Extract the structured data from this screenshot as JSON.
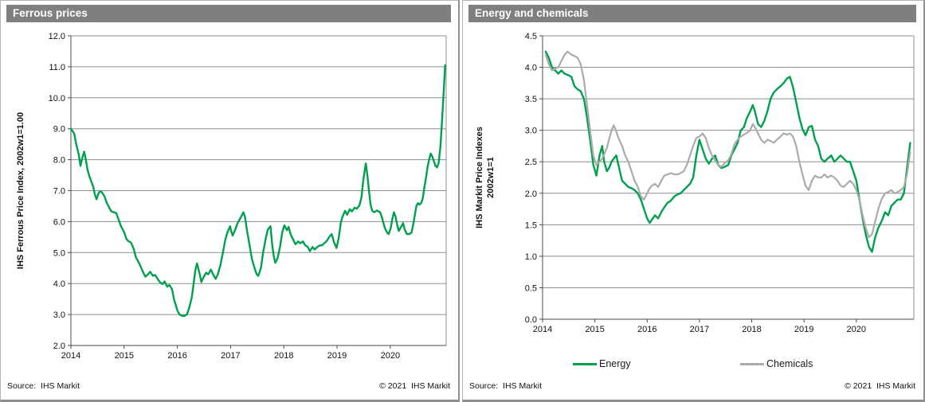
{
  "figure": {
    "background": "#ffffff",
    "header_bg": "#7f7f7f",
    "header_text_color": "#ffffff",
    "grid_color": "#8d8d8d",
    "axis_color": "#4a4a4a"
  },
  "chart_data": [
    {
      "type": "line",
      "title": "Ferrous prices",
      "xlabel": "",
      "ylabel_lines": [
        "IHS Ferrous Price Index, 2002w1=1.00"
      ],
      "xlim": [
        2014,
        2021.05
      ],
      "ylim": [
        2,
        12
      ],
      "ytick_step": 1,
      "ytick_decimals": 1,
      "xticks": [
        2014,
        2015,
        2016,
        2017,
        2018,
        2019,
        2020
      ],
      "grid": "horizontal",
      "legend_position": "none",
      "source": "Source:  IHS Markit",
      "copyright": "© 2021  IHS Markit",
      "series": [
        {
          "name": "Ferrous price index",
          "color": "#00A04E",
          "width": 2.4,
          "x": [
            2014.0,
            2014.06,
            2014.1,
            2014.15,
            2014.18,
            2014.22,
            2014.25,
            2014.28,
            2014.31,
            2014.34,
            2014.37,
            2014.42,
            2014.45,
            2014.48,
            2014.51,
            2014.54,
            2014.58,
            2014.63,
            2014.67,
            2014.72,
            2014.76,
            2014.81,
            2014.85,
            2014.9,
            2014.94,
            2015.0,
            2015.04,
            2015.07,
            2015.13,
            2015.18,
            2015.22,
            2015.27,
            2015.31,
            2015.36,
            2015.4,
            2015.45,
            2015.49,
            2015.54,
            2015.58,
            2015.63,
            2015.67,
            2015.72,
            2015.76,
            2015.81,
            2015.85,
            2015.9,
            2015.94,
            2015.97,
            2016.0,
            2016.04,
            2016.09,
            2016.13,
            2016.18,
            2016.22,
            2016.27,
            2016.31,
            2016.34,
            2016.37,
            2016.42,
            2016.45,
            2016.49,
            2016.54,
            2016.58,
            2016.63,
            2016.67,
            2016.72,
            2016.76,
            2016.81,
            2016.85,
            2016.9,
            2016.94,
            2016.99,
            2017.01,
            2017.04,
            2017.09,
            2017.13,
            2017.18,
            2017.24,
            2017.27,
            2017.31,
            2017.36,
            2017.4,
            2017.45,
            2017.49,
            2017.52,
            2017.57,
            2017.61,
            2017.66,
            2017.7,
            2017.75,
            2017.78,
            2017.81,
            2017.84,
            2017.88,
            2017.93,
            2017.97,
            2018.01,
            2018.06,
            2018.09,
            2018.13,
            2018.18,
            2018.22,
            2018.27,
            2018.31,
            2018.36,
            2018.4,
            2018.45,
            2018.49,
            2018.54,
            2018.58,
            2018.63,
            2018.67,
            2018.72,
            2018.76,
            2018.81,
            2018.85,
            2018.9,
            2018.94,
            2018.99,
            2019.03,
            2019.07,
            2019.1,
            2019.15,
            2019.19,
            2019.24,
            2019.28,
            2019.33,
            2019.37,
            2019.42,
            2019.46,
            2019.49,
            2019.54,
            2019.57,
            2019.6,
            2019.63,
            2019.66,
            2019.7,
            2019.75,
            2019.81,
            2019.85,
            2019.88,
            2019.91,
            2019.94,
            2019.97,
            2020.01,
            2020.04,
            2020.07,
            2020.1,
            2020.13,
            2020.16,
            2020.21,
            2020.24,
            2020.27,
            2020.31,
            2020.36,
            2020.4,
            2020.43,
            2020.46,
            2020.49,
            2020.52,
            2020.55,
            2020.58,
            2020.61,
            2020.64,
            2020.67,
            2020.7,
            2020.73,
            2020.76,
            2020.79,
            2020.82,
            2020.85,
            2020.88,
            2020.91,
            2020.94,
            2020.97,
            2021.0,
            2021.03
          ],
          "y": [
            9.0,
            8.85,
            8.5,
            8.15,
            7.8,
            8.1,
            8.26,
            8.0,
            7.7,
            7.5,
            7.36,
            7.12,
            6.87,
            6.72,
            6.88,
            6.98,
            6.95,
            6.82,
            6.62,
            6.45,
            6.33,
            6.3,
            6.28,
            6.05,
            5.85,
            5.66,
            5.45,
            5.38,
            5.32,
            5.12,
            4.85,
            4.7,
            4.55,
            4.35,
            4.22,
            4.3,
            4.38,
            4.25,
            4.28,
            4.15,
            4.05,
            3.98,
            4.07,
            3.9,
            3.95,
            3.82,
            3.47,
            3.31,
            3.13,
            3.0,
            2.96,
            2.95,
            3.0,
            3.2,
            3.55,
            4.05,
            4.45,
            4.65,
            4.3,
            4.05,
            4.2,
            4.35,
            4.3,
            4.45,
            4.3,
            4.15,
            4.3,
            4.6,
            4.95,
            5.4,
            5.65,
            5.85,
            5.7,
            5.55,
            5.75,
            5.95,
            6.1,
            6.3,
            6.15,
            5.7,
            5.2,
            4.8,
            4.5,
            4.3,
            4.25,
            4.5,
            5.0,
            5.45,
            5.75,
            5.85,
            5.3,
            4.9,
            4.67,
            4.8,
            5.2,
            5.65,
            5.88,
            5.72,
            5.83,
            5.58,
            5.4,
            5.27,
            5.36,
            5.3,
            5.36,
            5.24,
            5.18,
            5.05,
            5.18,
            5.1,
            5.18,
            5.23,
            5.24,
            5.3,
            5.38,
            5.5,
            5.6,
            5.35,
            5.15,
            5.45,
            5.95,
            6.15,
            6.35,
            6.22,
            6.4,
            6.33,
            6.45,
            6.42,
            6.52,
            6.8,
            7.3,
            7.88,
            7.5,
            7.0,
            6.55,
            6.35,
            6.3,
            6.36,
            6.3,
            6.1,
            5.9,
            5.75,
            5.65,
            5.6,
            5.8,
            6.1,
            6.3,
            6.15,
            5.9,
            5.7,
            5.85,
            5.95,
            5.75,
            5.6,
            5.6,
            5.65,
            5.9,
            6.2,
            6.5,
            6.6,
            6.55,
            6.6,
            6.75,
            7.1,
            7.4,
            7.75,
            8.0,
            8.2,
            8.1,
            7.95,
            7.8,
            7.75,
            7.9,
            8.4,
            9.2,
            10.1,
            11.05
          ]
        }
      ]
    },
    {
      "type": "line",
      "title": "Energy and chemicals",
      "xlabel": "",
      "ylabel_lines": [
        "IHS Markit Price Indexes",
        "2002w1=1"
      ],
      "xlim": [
        2014,
        2021.1
      ],
      "ylim": [
        0,
        4.5
      ],
      "ytick_step": 0.5,
      "ytick_decimals": 1,
      "xticks": [
        2014,
        2015,
        2016,
        2017,
        2018,
        2019,
        2020
      ],
      "grid": "horizontal",
      "legend_position": "bottom",
      "source": "Source:  IHS Markit",
      "copyright": "© 2021  IHS Markit",
      "series": [
        {
          "name": "Energy",
          "color": "#00A04E",
          "width": 2.4,
          "x": [
            2014.06,
            2014.12,
            2014.18,
            2014.24,
            2014.3,
            2014.36,
            2014.42,
            2014.48,
            2014.55,
            2014.61,
            2014.67,
            2014.73,
            2014.79,
            2014.85,
            2014.91,
            2014.97,
            2015.03,
            2015.09,
            2015.14,
            2015.18,
            2015.23,
            2015.27,
            2015.32,
            2015.36,
            2015.41,
            2015.45,
            2015.52,
            2015.58,
            2015.64,
            2015.7,
            2015.76,
            2015.82,
            2015.88,
            2015.94,
            2016.0,
            2016.05,
            2016.09,
            2016.15,
            2016.21,
            2016.27,
            2016.33,
            2016.39,
            2016.45,
            2016.52,
            2016.58,
            2016.64,
            2016.7,
            2016.76,
            2016.82,
            2016.88,
            2016.94,
            2017.0,
            2017.06,
            2017.12,
            2017.18,
            2017.24,
            2017.3,
            2017.36,
            2017.42,
            2017.48,
            2017.55,
            2017.61,
            2017.67,
            2017.73,
            2017.79,
            2017.85,
            2017.91,
            2017.97,
            2018.02,
            2018.06,
            2018.12,
            2018.18,
            2018.24,
            2018.3,
            2018.36,
            2018.42,
            2018.48,
            2018.55,
            2018.61,
            2018.67,
            2018.73,
            2018.79,
            2018.85,
            2018.91,
            2018.97,
            2019.03,
            2019.09,
            2019.15,
            2019.21,
            2019.27,
            2019.33,
            2019.39,
            2019.45,
            2019.52,
            2019.58,
            2019.64,
            2019.7,
            2019.76,
            2019.82,
            2019.88,
            2019.94,
            2020.0,
            2020.06,
            2020.12,
            2020.18,
            2020.24,
            2020.3,
            2020.36,
            2020.42,
            2020.48,
            2020.55,
            2020.61,
            2020.67,
            2020.73,
            2020.79,
            2020.85,
            2020.91,
            2020.97,
            2021.03
          ],
          "y": [
            4.25,
            4.15,
            4.0,
            3.95,
            3.9,
            3.95,
            3.9,
            3.88,
            3.85,
            3.7,
            3.65,
            3.62,
            3.5,
            3.2,
            2.85,
            2.45,
            2.28,
            2.6,
            2.75,
            2.5,
            2.35,
            2.4,
            2.5,
            2.55,
            2.6,
            2.45,
            2.2,
            2.15,
            2.1,
            2.08,
            2.05,
            2.0,
            1.9,
            1.75,
            1.6,
            1.53,
            1.58,
            1.65,
            1.6,
            1.7,
            1.78,
            1.85,
            1.88,
            1.95,
            1.98,
            2.0,
            2.05,
            2.1,
            2.15,
            2.25,
            2.6,
            2.85,
            2.7,
            2.55,
            2.47,
            2.55,
            2.6,
            2.45,
            2.4,
            2.42,
            2.45,
            2.6,
            2.7,
            2.8,
            3.0,
            3.05,
            3.2,
            3.3,
            3.4,
            3.3,
            3.1,
            3.05,
            3.15,
            3.3,
            3.5,
            3.6,
            3.65,
            3.7,
            3.75,
            3.82,
            3.85,
            3.68,
            3.45,
            3.2,
            3.02,
            2.92,
            3.05,
            3.07,
            2.85,
            2.75,
            2.55,
            2.5,
            2.55,
            2.6,
            2.5,
            2.55,
            2.6,
            2.55,
            2.5,
            2.5,
            2.35,
            2.2,
            1.9,
            1.6,
            1.35,
            1.15,
            1.07,
            1.3,
            1.45,
            1.55,
            1.7,
            1.65,
            1.8,
            1.85,
            1.9,
            1.9,
            2.0,
            2.4,
            2.8
          ]
        },
        {
          "name": "Chemicals",
          "color": "#ABABAB",
          "width": 2.2,
          "x": [
            2014.06,
            2014.12,
            2014.18,
            2014.24,
            2014.3,
            2014.36,
            2014.42,
            2014.48,
            2014.55,
            2014.61,
            2014.67,
            2014.73,
            2014.79,
            2014.85,
            2014.91,
            2014.97,
            2015.03,
            2015.09,
            2015.14,
            2015.18,
            2015.23,
            2015.27,
            2015.32,
            2015.36,
            2015.41,
            2015.45,
            2015.52,
            2015.58,
            2015.64,
            2015.7,
            2015.76,
            2015.82,
            2015.88,
            2015.94,
            2016.0,
            2016.05,
            2016.09,
            2016.15,
            2016.21,
            2016.27,
            2016.33,
            2016.39,
            2016.45,
            2016.52,
            2016.58,
            2016.64,
            2016.7,
            2016.76,
            2016.82,
            2016.88,
            2016.94,
            2017.0,
            2017.06,
            2017.12,
            2017.18,
            2017.24,
            2017.3,
            2017.36,
            2017.42,
            2017.48,
            2017.55,
            2017.61,
            2017.67,
            2017.73,
            2017.79,
            2017.85,
            2017.91,
            2017.97,
            2018.02,
            2018.06,
            2018.12,
            2018.18,
            2018.24,
            2018.3,
            2018.36,
            2018.42,
            2018.48,
            2018.55,
            2018.61,
            2018.67,
            2018.73,
            2018.79,
            2018.85,
            2018.91,
            2018.97,
            2019.03,
            2019.09,
            2019.15,
            2019.21,
            2019.27,
            2019.33,
            2019.39,
            2019.45,
            2019.52,
            2019.58,
            2019.64,
            2019.7,
            2019.76,
            2019.82,
            2019.88,
            2019.94,
            2020.0,
            2020.06,
            2020.12,
            2020.18,
            2020.24,
            2020.3,
            2020.36,
            2020.42,
            2020.48,
            2020.55,
            2020.61,
            2020.67,
            2020.73,
            2020.79,
            2020.85,
            2020.91,
            2020.97,
            2021.03
          ],
          "y": [
            4.2,
            4.05,
            3.95,
            3.98,
            4.0,
            4.1,
            4.2,
            4.25,
            4.2,
            4.18,
            4.15,
            4.05,
            3.8,
            3.4,
            3.0,
            2.6,
            2.45,
            2.5,
            2.55,
            2.62,
            2.72,
            2.85,
            3.0,
            3.08,
            2.98,
            2.88,
            2.75,
            2.6,
            2.5,
            2.35,
            2.2,
            2.1,
            1.95,
            1.9,
            2.0,
            2.08,
            2.12,
            2.15,
            2.1,
            2.2,
            2.28,
            2.3,
            2.32,
            2.3,
            2.3,
            2.32,
            2.35,
            2.45,
            2.6,
            2.75,
            2.88,
            2.9,
            2.95,
            2.88,
            2.72,
            2.6,
            2.52,
            2.45,
            2.42,
            2.48,
            2.52,
            2.62,
            2.78,
            2.85,
            2.9,
            2.93,
            2.96,
            3.0,
            3.1,
            3.05,
            2.95,
            2.85,
            2.8,
            2.85,
            2.83,
            2.8,
            2.85,
            2.9,
            2.95,
            2.93,
            2.95,
            2.9,
            2.75,
            2.5,
            2.3,
            2.12,
            2.05,
            2.2,
            2.28,
            2.25,
            2.25,
            2.3,
            2.25,
            2.28,
            2.25,
            2.2,
            2.12,
            2.1,
            2.15,
            2.2,
            2.15,
            2.05,
            1.9,
            1.65,
            1.45,
            1.3,
            1.35,
            1.55,
            1.75,
            1.9,
            2.0,
            2.02,
            2.05,
            2.0,
            2.02,
            2.05,
            2.1,
            2.3,
            2.65
          ]
        }
      ]
    }
  ]
}
